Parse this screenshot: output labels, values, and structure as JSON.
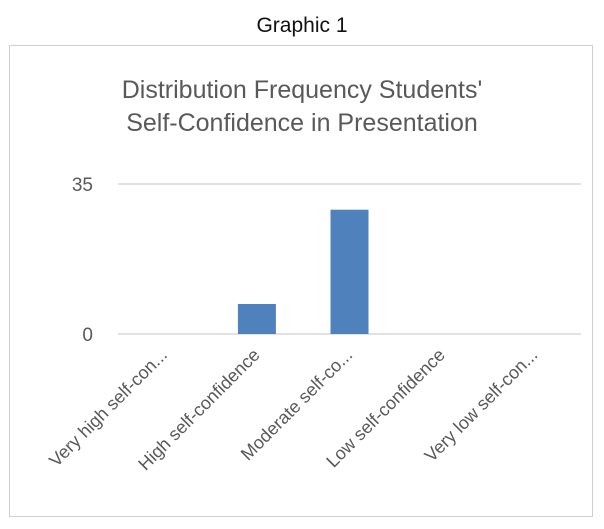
{
  "caption": "Graphic 1",
  "chart_data": {
    "type": "bar",
    "title_lines": [
      "Distribution Frequency Students'",
      "Self-Confidence in Presentation"
    ],
    "categories": [
      "Very high self-con...",
      "High self-confidence",
      "Moderate self-co...",
      "Low self-confidence",
      "Very low self-con..."
    ],
    "values": [
      0,
      7,
      29,
      0,
      0
    ],
    "y_ticks": [
      "0",
      "35"
    ],
    "ylim": [
      0,
      35
    ],
    "grid": true,
    "legend": "none",
    "bar_color": "#4f81bd",
    "grid_color": "#d9d9d9"
  }
}
